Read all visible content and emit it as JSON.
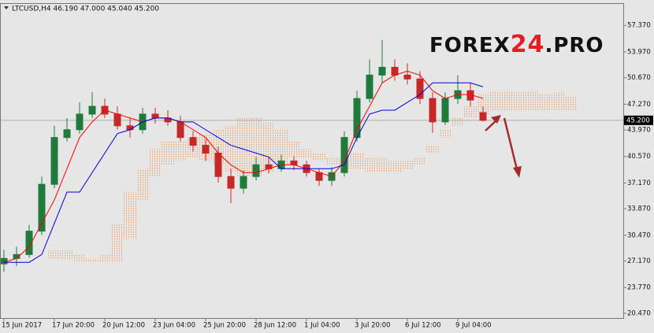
{
  "chart_data": {
    "type": "candlestick",
    "title": "LTCUSD,H4  46.190 47.000 45.040 45.200",
    "watermark": {
      "left": "FOREX",
      "middle": "24",
      "right": ".PRO"
    },
    "categories": [
      "15 Jun 2017",
      null,
      null,
      null,
      "17 Jun 20:00",
      null,
      null,
      null,
      "20 Jun 12:00",
      null,
      null,
      null,
      "23 Jun 04:00",
      null,
      null,
      null,
      "25 Jun 20:00",
      null,
      null,
      null,
      "28 Jun 12:00",
      null,
      null,
      null,
      "1 Jul 04:00",
      null,
      null,
      null,
      "3 Jul 20:00",
      null,
      null,
      null,
      "6 Jul 12:00",
      null,
      null,
      null,
      "9 Jul 04:00",
      null,
      null,
      null,
      null,
      null,
      null,
      null,
      null,
      null
    ],
    "open": [
      26.8,
      27.5,
      28,
      31,
      37,
      43,
      44,
      46,
      47,
      46,
      44.5,
      44,
      46,
      45.5,
      45,
      43,
      42,
      41,
      38,
      36.5,
      38,
      39.5,
      39,
      40,
      39.5,
      38.5,
      37.5,
      38.5,
      43,
      48,
      51,
      52,
      51,
      50.5,
      48,
      45,
      48,
      49,
      46.19,
      null,
      null,
      null,
      null,
      null,
      null,
      null
    ],
    "high": [
      28.6,
      29,
      31.8,
      38,
      44.5,
      45.5,
      47.5,
      48.8,
      48,
      47,
      45.5,
      46.8,
      46.8,
      46.5,
      45.8,
      43.8,
      42.8,
      41.8,
      39,
      38.8,
      40.5,
      40.5,
      40.8,
      40.6,
      40,
      39,
      39.2,
      43.8,
      49,
      53,
      55.5,
      53,
      52.5,
      51.5,
      48.8,
      48.8,
      51,
      50,
      47,
      null,
      null,
      null,
      null,
      null,
      null,
      null
    ],
    "low": [
      25.8,
      26.5,
      27.6,
      30.5,
      36.5,
      42.5,
      43.5,
      45.5,
      45.5,
      44,
      43,
      43.5,
      44.8,
      44.5,
      42.5,
      41.2,
      40,
      37.2,
      34.6,
      35.8,
      37.5,
      38.4,
      38.6,
      38.8,
      38,
      36.8,
      36.8,
      38,
      42.5,
      47.5,
      50,
      50.3,
      49.8,
      47.3,
      43.6,
      44.6,
      47.3,
      47,
      45.04,
      null,
      null,
      null,
      null,
      null,
      null,
      null
    ],
    "close": [
      27.5,
      28,
      31,
      37,
      43,
      44,
      46,
      47,
      46,
      44.5,
      44,
      46,
      45.5,
      45,
      43,
      42,
      41,
      38,
      36.5,
      38,
      39.5,
      39,
      40,
      39.5,
      38.5,
      37.5,
      38.5,
      43,
      48,
      51,
      52,
      51,
      50.5,
      48,
      45,
      48,
      49,
      47.8,
      45.2,
      null,
      null,
      null,
      null,
      null,
      null,
      null
    ],
    "up_color": "#1f7a3c",
    "down_color": "#c62828",
    "lines": [
      {
        "color": "#ff0000",
        "values": [
          27,
          27.5,
          29,
          32,
          35,
          39,
          43,
          45,
          46.5,
          46,
          45.5,
          45,
          45.5,
          45.5,
          45,
          44,
          43,
          41,
          39.5,
          38.5,
          38.5,
          39,
          39.5,
          39.5,
          39,
          38.5,
          38,
          40,
          44,
          47,
          50,
          51,
          51.5,
          51,
          49,
          48,
          48.5,
          48.5,
          48,
          null,
          null,
          null,
          null,
          null,
          null,
          null
        ]
      },
      {
        "color": "#0000dd",
        "values": [
          27,
          27,
          27,
          28,
          32,
          36,
          36,
          38.5,
          41,
          43.5,
          44,
          45,
          45.5,
          45.5,
          45,
          45,
          44,
          43,
          42,
          41.5,
          41,
          40.5,
          39,
          39,
          39,
          39,
          39,
          39.5,
          43,
          46,
          46.5,
          46.5,
          47.5,
          48.5,
          50,
          50,
          50,
          50,
          49.5,
          null,
          null,
          null,
          null,
          null,
          null,
          null
        ]
      }
    ],
    "cloud": {
      "color": "#f4a060",
      "a": [
        null,
        null,
        null,
        null,
        28.5,
        28.5,
        28,
        27.5,
        28,
        32,
        36,
        39,
        41.5,
        42.5,
        42.5,
        43,
        43.5,
        44,
        44.5,
        45.5,
        45.5,
        45,
        44,
        42.5,
        41.5,
        41,
        40.5,
        40.5,
        41,
        40.5,
        40.5,
        40,
        40,
        40.5,
        42,
        44,
        45.5,
        47,
        48.5,
        49,
        49,
        48.8,
        49,
        48.5,
        48.8,
        48.3
      ],
      "b": [
        null,
        null,
        null,
        null,
        27.5,
        27.3,
        27,
        27,
        27,
        27,
        30,
        35,
        38,
        39.5,
        40,
        40.5,
        40,
        39.5,
        38.5,
        38,
        38,
        38.5,
        39.5,
        40.5,
        40.5,
        40,
        39.5,
        39,
        39,
        38.5,
        38.5,
        38.5,
        39,
        39.5,
        41,
        43,
        44.5,
        45.5,
        46,
        46.5,
        46.5,
        46.5,
        46.5,
        46.5,
        46.5,
        46.5
      ]
    },
    "current_price": {
      "value": 45.2,
      "label": "45.200"
    },
    "ylim": [
      19.86,
      60.22
    ],
    "yticks": [
      {
        "value": 57.37,
        "label": "57.370"
      },
      {
        "value": 53.97,
        "label": "53.970"
      },
      {
        "value": 50.67,
        "label": "50.670"
      },
      {
        "value": 47.27,
        "label": "47.270"
      },
      {
        "value": 43.97,
        "label": "43.970"
      },
      {
        "value": 40.57,
        "label": "40.570"
      },
      {
        "value": 37.17,
        "label": "37.170"
      },
      {
        "value": 33.87,
        "label": "33.870"
      },
      {
        "value": 30.47,
        "label": "30.470"
      },
      {
        "value": 27.17,
        "label": "27.170"
      },
      {
        "value": 23.77,
        "label": "23.770"
      },
      {
        "value": 20.47,
        "label": "20.470"
      }
    ],
    "grid": false
  }
}
